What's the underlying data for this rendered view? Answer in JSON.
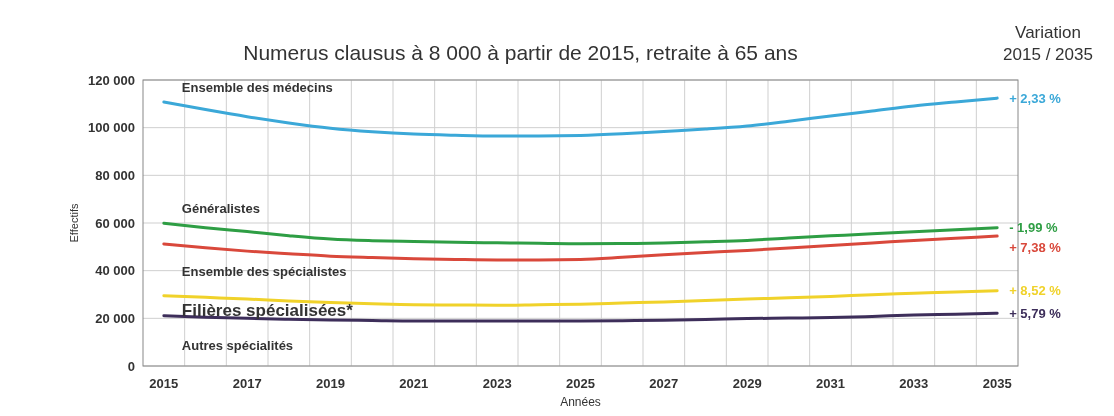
{
  "chart_data": {
    "type": "line",
    "title": "Numerus clausus à 8 000 à partir de 2015, retraite à 65 ans",
    "xlabel": "Années",
    "ylabel": "Effectifs",
    "annotations": [
      "Variation\n2015 / 2035",
      {
        "text": "+ 2,33 %",
        "x": "2035",
        "y": 112400
      },
      {
        "text": "- 1,99 %",
        "x": "2035",
        "y": 58000
      },
      {
        "text": "+ 7,38 %",
        "x": "2035",
        "y": 54500
      },
      {
        "text": "+ 8,52 %",
        "x": "2035",
        "y": 31600
      },
      {
        "text": "+ 5,79 %",
        "x": "2035",
        "y": 22100
      }
    ],
    "categories": [
      "2015",
      null,
      "2017",
      null,
      "2019",
      null,
      "2021",
      null,
      "2023",
      null,
      "2025",
      null,
      "2027",
      null,
      "2029",
      null,
      "2031",
      null,
      "2033",
      null,
      "2035"
    ],
    "ylim": [
      0,
      120000
    ],
    "yticks": [
      {
        "value": 0,
        "label": "0"
      },
      {
        "value": 20000,
        "label": "20 000"
      },
      {
        "value": 40000,
        "label": "40 000"
      },
      {
        "value": 60000,
        "label": "60 000"
      },
      {
        "value": 80000,
        "label": "80 000"
      },
      {
        "value": 100000,
        "label": "100 000"
      },
      {
        "value": 120000,
        "label": "120 000"
      }
    ],
    "grid": true,
    "legend": false,
    "marker": "none",
    "line_style": "solid",
    "series": [
      {
        "name": "Ensemble des médecins",
        "color": "#3ba8d8",
        "values": [
          110800,
          107600,
          104600,
          102000,
          99800,
          98300,
          97300,
          96800,
          96500,
          96500,
          96700,
          97400,
          98400,
          99400,
          100700,
          102700,
          104900,
          107000,
          109100,
          110800,
          112400
        ]
      },
      {
        "name": "Généralistes",
        "color": "#2e9e44",
        "values": [
          59900,
          58000,
          56400,
          54700,
          53300,
          52600,
          52200,
          51900,
          51700,
          51500,
          51300,
          51400,
          51600,
          52100,
          52700,
          53700,
          54600,
          55500,
          56300,
          57200,
          58000
        ]
      },
      {
        "name": "Ensemble des spécialistes",
        "color": "#d9483b",
        "values": [
          51200,
          49600,
          48200,
          47100,
          46100,
          45500,
          45000,
          44700,
          44500,
          44500,
          44700,
          45600,
          46700,
          47600,
          48500,
          49500,
          50600,
          51600,
          52700,
          53600,
          54500
        ]
      },
      {
        "name": "Filières spécialisées*",
        "color": "#f0d22a",
        "values": [
          29500,
          28800,
          28100,
          27300,
          26600,
          26100,
          25700,
          25600,
          25500,
          25700,
          25900,
          26400,
          26900,
          27500,
          28100,
          28600,
          29200,
          29900,
          30500,
          31100,
          31600
        ]
      },
      {
        "name": "Autres spécialités",
        "color": "#3d2e5a",
        "values": [
          21100,
          20500,
          20000,
          19600,
          19300,
          19100,
          18900,
          18900,
          18900,
          18900,
          18900,
          19000,
          19200,
          19500,
          19900,
          20100,
          20300,
          20800,
          21400,
          21700,
          22100
        ]
      }
    ]
  }
}
